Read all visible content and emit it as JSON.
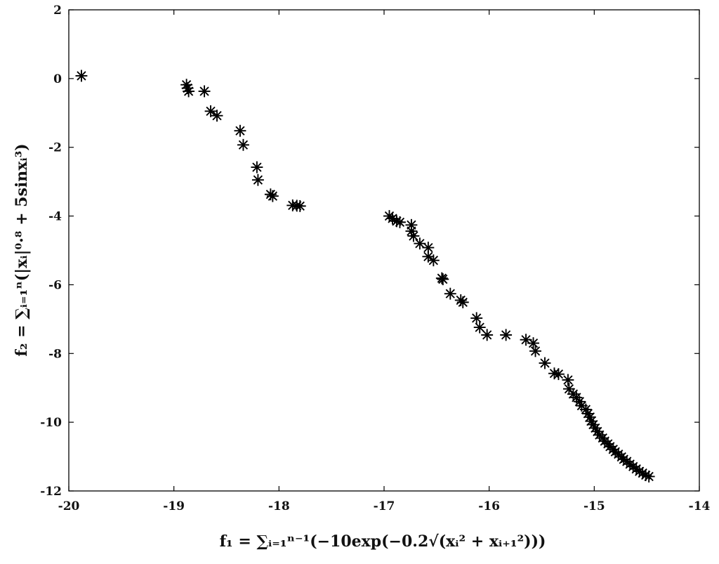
{
  "chart_data": {
    "type": "scatter",
    "title": "",
    "xlabel": "f₁ = ∑ᵢ₌₁ⁿ⁻¹(−10exp(−0.2√(xᵢ² + xᵢ₊₁²)))",
    "ylabel": "f₂ = ∑ᵢ₌₁ⁿ(|xᵢ|⁰·⁸ + 5sinxᵢ³)",
    "xlim": [
      -20,
      -14
    ],
    "ylim": [
      -12,
      2
    ],
    "xticks": [
      "-20",
      "-19",
      "-18",
      "-17",
      "-16",
      "-15",
      "-14"
    ],
    "yticks": [
      "2",
      "0",
      "-2",
      "-4",
      "-6",
      "-8",
      "-10",
      "-12"
    ],
    "grid": false,
    "marker": "asterisk",
    "color": "#000000",
    "series": [
      {
        "points": [
          [
            -19.88,
            0.08
          ],
          [
            -18.88,
            -0.18
          ],
          [
            -18.87,
            -0.28
          ],
          [
            -18.86,
            -0.37
          ],
          [
            -18.71,
            -0.37
          ],
          [
            -18.65,
            -0.95
          ],
          [
            -18.59,
            -1.08
          ],
          [
            -18.37,
            -1.52
          ],
          [
            -18.34,
            -1.93
          ],
          [
            -18.21,
            -2.58
          ],
          [
            -18.2,
            -2.95
          ],
          [
            -18.08,
            -3.37
          ],
          [
            -18.06,
            -3.42
          ],
          [
            -17.87,
            -3.69
          ],
          [
            -17.83,
            -3.7
          ],
          [
            -17.8,
            -3.71
          ],
          [
            -16.95,
            -4.0
          ],
          [
            -16.92,
            -4.07
          ],
          [
            -16.88,
            -4.15
          ],
          [
            -16.85,
            -4.18
          ],
          [
            -16.74,
            -4.26
          ],
          [
            -16.74,
            -4.44
          ],
          [
            -16.72,
            -4.58
          ],
          [
            -16.66,
            -4.8
          ],
          [
            -16.58,
            -4.92
          ],
          [
            -16.58,
            -5.18
          ],
          [
            -16.53,
            -5.29
          ],
          [
            -16.45,
            -5.81
          ],
          [
            -16.44,
            -5.84
          ],
          [
            -16.37,
            -6.26
          ],
          [
            -16.27,
            -6.45
          ],
          [
            -16.25,
            -6.51
          ],
          [
            -16.12,
            -6.97
          ],
          [
            -16.09,
            -7.24
          ],
          [
            -16.02,
            -7.46
          ],
          [
            -15.84,
            -7.46
          ],
          [
            -15.65,
            -7.6
          ],
          [
            -15.58,
            -7.7
          ],
          [
            -15.56,
            -7.93
          ],
          [
            -15.47,
            -8.28
          ],
          [
            -15.38,
            -8.58
          ],
          [
            -15.34,
            -8.6
          ],
          [
            -15.25,
            -8.77
          ],
          [
            -15.24,
            -9.03
          ],
          [
            -15.2,
            -9.18
          ],
          [
            -15.17,
            -9.28
          ],
          [
            -15.14,
            -9.4
          ],
          [
            -15.12,
            -9.52
          ],
          [
            -15.08,
            -9.63
          ],
          [
            -15.06,
            -9.75
          ],
          [
            -15.04,
            -9.85
          ],
          [
            -15.03,
            -9.97
          ],
          [
            -15.01,
            -10.07
          ],
          [
            -14.99,
            -10.17
          ],
          [
            -14.97,
            -10.27
          ],
          [
            -14.95,
            -10.37
          ],
          [
            -14.92,
            -10.46
          ],
          [
            -14.9,
            -10.55
          ],
          [
            -14.87,
            -10.63
          ],
          [
            -14.85,
            -10.71
          ],
          [
            -14.82,
            -10.79
          ],
          [
            -14.8,
            -10.86
          ],
          [
            -14.77,
            -10.93
          ],
          [
            -14.74,
            -11.01
          ],
          [
            -14.72,
            -11.08
          ],
          [
            -14.69,
            -11.14
          ],
          [
            -14.66,
            -11.22
          ],
          [
            -14.63,
            -11.29
          ],
          [
            -14.6,
            -11.36
          ],
          [
            -14.57,
            -11.43
          ],
          [
            -14.54,
            -11.48
          ],
          [
            -14.51,
            -11.54
          ],
          [
            -14.48,
            -11.58
          ]
        ]
      }
    ]
  }
}
